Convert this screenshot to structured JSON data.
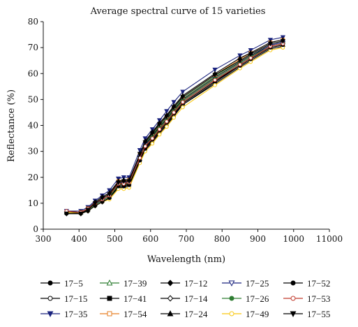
{
  "chart_data": {
    "type": "line",
    "title": "Average spectral curve of 15 varieties",
    "xlabel": "Wavelength (nm)",
    "ylabel": "Reflectance (%)",
    "xlim": [
      300,
      11000
    ],
    "ylim": [
      0,
      80
    ],
    "x_ticks": [
      "300",
      "400",
      "500",
      "600",
      "700",
      "800",
      "900",
      "1000",
      "11000"
    ],
    "y_ticks": [
      "0",
      "10",
      "20",
      "30",
      "40",
      "50",
      "60",
      "70",
      "80"
    ],
    "grid": false,
    "legend_position": "bottom",
    "x": [
      365,
      405,
      425,
      445,
      465,
      485,
      510,
      525,
      540,
      570,
      585,
      605,
      625,
      645,
      665,
      690,
      780,
      850,
      880,
      935,
      970
    ],
    "series": [
      {
        "name": "17−5",
        "marker": "circle-filled",
        "color": "#000000",
        "values": [
          6.0,
          6.0,
          7.0,
          9.0,
          10.5,
          12.0,
          16.0,
          16.0,
          16.5,
          26.0,
          30.5,
          33.5,
          37.0,
          40.0,
          43.5,
          48.0,
          56.5,
          63.0,
          65.5,
          70.0,
          71.0
        ]
      },
      {
        "name": "17−15",
        "marker": "circle-open",
        "color": "#000000",
        "values": [
          7.0,
          6.5,
          7.5,
          9.5,
          11.0,
          12.5,
          17.0,
          17.0,
          17.5,
          27.0,
          31.0,
          34.0,
          37.5,
          40.5,
          44.0,
          48.5,
          57.0,
          63.5,
          66.0,
          70.5,
          71.5
        ]
      },
      {
        "name": "17−35",
        "marker": "triangle-down-filled",
        "color": "#1a237e",
        "values": [
          7.0,
          7.0,
          8.5,
          11.0,
          13.0,
          15.0,
          19.5,
          20.0,
          20.0,
          30.5,
          35.0,
          38.5,
          42.0,
          45.5,
          49.0,
          53.0,
          61.5,
          67.0,
          69.0,
          73.0,
          74.0
        ]
      },
      {
        "name": "17−39",
        "marker": "triangle-up-open",
        "color": "#2e7d32",
        "values": [
          6.5,
          6.5,
          8.0,
          10.0,
          12.0,
          13.5,
          18.0,
          18.5,
          18.5,
          28.5,
          33.0,
          36.5,
          40.0,
          43.0,
          46.5,
          50.5,
          59.0,
          65.0,
          67.5,
          71.5,
          72.5
        ]
      },
      {
        "name": "17−41",
        "marker": "square-filled",
        "color": "#000000",
        "values": [
          6.5,
          6.5,
          8.0,
          10.0,
          11.5,
          13.0,
          17.5,
          18.0,
          18.0,
          28.0,
          32.5,
          36.0,
          39.5,
          42.5,
          46.0,
          50.0,
          58.5,
          64.5,
          67.0,
          71.0,
          72.0
        ]
      },
      {
        "name": "17−54",
        "marker": "square-open",
        "color": "#e67e22",
        "values": [
          6.5,
          6.5,
          8.0,
          10.0,
          12.0,
          13.5,
          18.5,
          18.5,
          19.0,
          29.0,
          33.5,
          37.0,
          40.5,
          43.5,
          47.0,
          51.0,
          59.5,
          65.5,
          68.0,
          72.0,
          73.0
        ]
      },
      {
        "name": "17−12",
        "marker": "diamond-filled",
        "color": "#000000",
        "values": [
          6.0,
          6.0,
          7.5,
          9.5,
          11.0,
          12.5,
          17.0,
          17.0,
          17.5,
          27.0,
          31.5,
          35.0,
          38.5,
          41.5,
          45.0,
          49.0,
          57.5,
          63.5,
          66.0,
          70.5,
          71.5
        ]
      },
      {
        "name": "17−14",
        "marker": "diamond-open",
        "color": "#000000",
        "values": [
          6.5,
          6.0,
          7.0,
          9.0,
          10.5,
          12.0,
          16.5,
          16.5,
          17.0,
          26.5,
          31.0,
          34.0,
          37.5,
          40.5,
          44.0,
          48.0,
          56.0,
          62.5,
          65.0,
          69.5,
          70.5
        ]
      },
      {
        "name": "17−24",
        "marker": "triangle-up-filled",
        "color": "#000000",
        "values": [
          6.5,
          6.5,
          8.0,
          10.5,
          12.5,
          14.0,
          18.5,
          19.0,
          19.0,
          29.0,
          34.0,
          37.5,
          41.0,
          44.0,
          47.5,
          51.5,
          60.0,
          66.0,
          68.0,
          72.0,
          73.0
        ]
      },
      {
        "name": "17−25",
        "marker": "triangle-down-open",
        "color": "#1a237e",
        "values": [
          6.0,
          6.0,
          7.5,
          9.5,
          11.5,
          13.0,
          17.5,
          17.5,
          18.0,
          28.0,
          32.5,
          35.5,
          39.0,
          42.0,
          45.5,
          49.5,
          58.0,
          64.0,
          66.5,
          71.0,
          72.0
        ]
      },
      {
        "name": "17−26",
        "marker": "circle-filled",
        "color": "#2e7d32",
        "values": [
          6.0,
          6.0,
          7.5,
          9.5,
          11.0,
          12.5,
          17.0,
          17.5,
          17.5,
          27.5,
          32.0,
          35.5,
          39.0,
          42.0,
          45.5,
          49.5,
          58.0,
          64.0,
          66.5,
          70.5,
          71.5
        ]
      },
      {
        "name": "17−49",
        "marker": "circle-open",
        "color": "#f9c80e",
        "values": [
          6.5,
          6.0,
          7.0,
          9.0,
          10.5,
          11.5,
          15.5,
          15.5,
          16.0,
          25.5,
          30.0,
          33.0,
          36.5,
          39.5,
          43.0,
          47.0,
          55.5,
          62.0,
          64.5,
          69.0,
          70.0
        ]
      },
      {
        "name": "17−52",
        "marker": "circle-filled",
        "color": "#000000",
        "values": [
          6.0,
          6.0,
          7.0,
          9.0,
          10.5,
          12.0,
          16.5,
          16.5,
          17.0,
          26.5,
          31.0,
          34.5,
          38.0,
          41.0,
          44.5,
          48.5,
          57.0,
          63.0,
          65.5,
          70.0,
          71.0
        ]
      },
      {
        "name": "17−53",
        "marker": "circle-open",
        "color": "#c0392b",
        "values": [
          7.0,
          6.5,
          8.0,
          10.0,
          11.5,
          13.0,
          17.5,
          17.5,
          18.0,
          27.5,
          32.0,
          35.0,
          38.5,
          41.5,
          45.0,
          49.0,
          57.5,
          63.5,
          66.0,
          70.5,
          71.5
        ]
      },
      {
        "name": "17−55",
        "marker": "triangle-down-filled",
        "color": "#000000",
        "values": [
          6.0,
          6.0,
          7.5,
          10.0,
          12.0,
          13.5,
          18.0,
          18.5,
          18.5,
          29.0,
          33.5,
          37.0,
          40.5,
          43.5,
          47.0,
          51.0,
          59.5,
          65.0,
          67.5,
          71.5,
          72.5
        ]
      }
    ]
  }
}
